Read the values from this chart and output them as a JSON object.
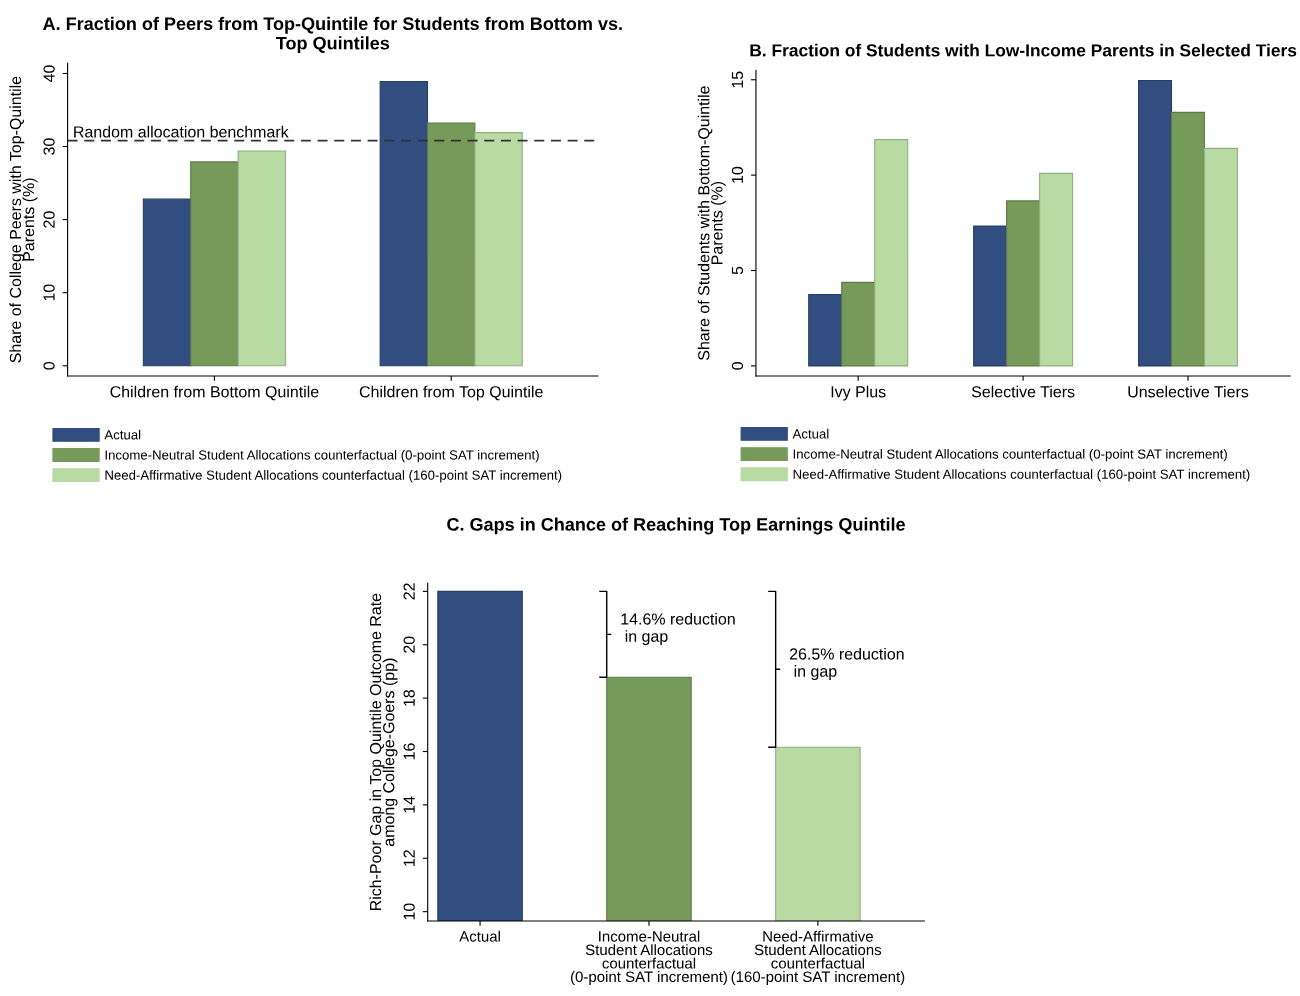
{
  "chart_data": [
    {
      "type": "bar",
      "title": "A. Fraction of Peers from Top-Quintile for Students from Bottom vs.\nTop Quintiles",
      "ylabel": "Share of College Peers with Top-Quintile\nParents (%)",
      "categories": [
        "Children from Bottom Quintile",
        "Children from Top Quintile"
      ],
      "series": [
        {
          "name": "Actual",
          "color": "#324d7f",
          "values": [
            22.8,
            38.9
          ]
        },
        {
          "name": "Income-Neutral Student Allocations counterfactual (0-point SAT increment)",
          "color": "#769a5a",
          "values": [
            27.9,
            33.2
          ]
        },
        {
          "name": "Need-Affirmative Student Allocations counterfactual (160-point SAT increment)",
          "color": "#b8daa3",
          "values": [
            29.4,
            31.9
          ]
        }
      ],
      "ylim": [
        -1.4,
        41.4
      ],
      "yticks": [
        0,
        10,
        20,
        30,
        40
      ],
      "ref_lines": [
        {
          "axis": "y",
          "value": 30.8,
          "label": "Random allocation benchmark",
          "color": "#333333",
          "line_style": "dashed"
        }
      ],
      "grid": false,
      "legend": "bottom"
    },
    {
      "type": "bar",
      "title": "B. Fraction of Students with Low-Income Parents in Selected Tiers",
      "ylabel": "Share of Students with Bottom-Quintile\nParents (%)",
      "categories": [
        "Ivy Plus",
        "Selective Tiers",
        "Unselective Tiers"
      ],
      "series": [
        {
          "name": "Actual",
          "color": "#324d7f",
          "values": [
            3.74,
            7.33,
            14.96
          ]
        },
        {
          "name": "Income-Neutral Student Allocations counterfactual (0-point SAT increment)",
          "color": "#769a5a",
          "values": [
            4.38,
            8.65,
            13.29
          ]
        },
        {
          "name": "Need-Affirmative Student Allocations counterfactual (160-point SAT increment)",
          "color": "#b8daa3",
          "values": [
            11.86,
            10.09,
            11.4
          ]
        }
      ],
      "ylim": [
        -0.53,
        15.5
      ],
      "yticks": [
        0,
        5,
        10,
        15
      ],
      "grid": false,
      "legend": "bottom"
    },
    {
      "type": "bar",
      "title": "C. Gaps in Chance of Reaching Top Earnings Quintile",
      "ylabel": "Rich-Poor Gap in Top Quintile Outcome Rate\namong College-Goers (pp)",
      "categories": [
        "Actual",
        "Income-Neutral\nStudent Allocations\ncounterfactual\n(0-point SAT increment)",
        "Need-Affirmative\nStudent Allocations\ncounterfactual\n(160-point SAT increment)"
      ],
      "values": [
        22.0,
        18.78,
        16.16
      ],
      "colors": [
        "#324d7f",
        "#769a5a",
        "#b8daa3"
      ],
      "ylim": [
        9.65,
        22.3
      ],
      "yticks": [
        10,
        12,
        14,
        16,
        18,
        20,
        22
      ],
      "annotations": [
        "14.6% reduction\n in gap",
        "26.5% reduction\n in gap"
      ],
      "grid": false,
      "legend": false
    }
  ]
}
